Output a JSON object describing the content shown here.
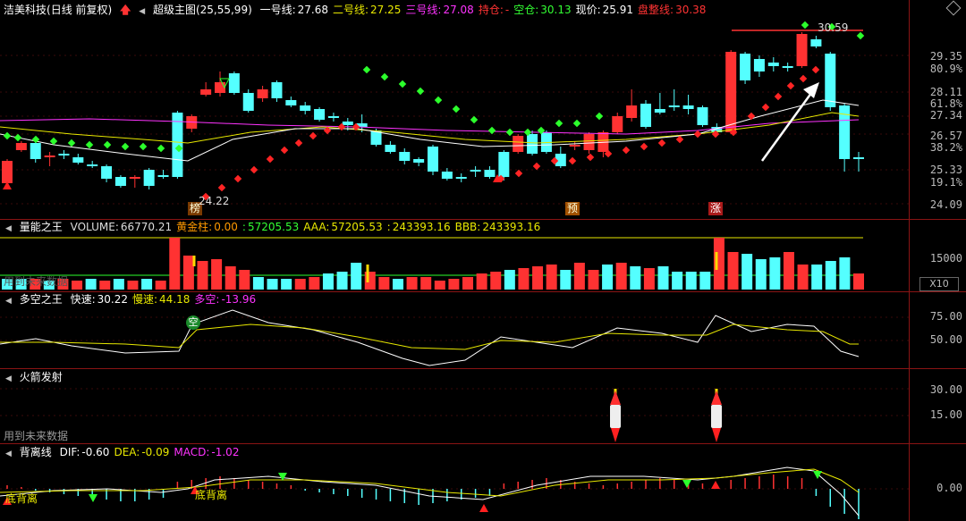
{
  "main": {
    "stock_name": "洁美科技",
    "period_label": "(日线 前复权)",
    "indicator_name": "超级主图(25,55,99)",
    "lines": [
      {
        "label": "一号线:",
        "value": "27.68",
        "color": "#ffffff"
      },
      {
        "label": "二号线:",
        "value": "27.25",
        "color": "#e8e800"
      },
      {
        "label": "三号线:",
        "value": "27.08",
        "color": "#ff33ff"
      },
      {
        "label": "持仓:",
        "value": "-",
        "color": "#ff3333"
      },
      {
        "label": "空仓:",
        "value": "30.13",
        "color": "#33ff33"
      },
      {
        "label": "现价:",
        "value": "25.91",
        "color": "#ffffff"
      },
      {
        "label": "盘整线:",
        "value": "30.38",
        "color": "#ff3333"
      }
    ],
    "y_labels": [
      "29.35",
      "80.9%",
      "28.11",
      "61.8%",
      "27.34",
      "26.57",
      "38.2%",
      "25.33",
      "19.1%",
      "24.09"
    ],
    "annotations": {
      "high_price": "30.59",
      "low_price": "24.22"
    },
    "tags": [
      "榜",
      "预",
      "涨"
    ]
  },
  "volume": {
    "name": "量能之王",
    "items": [
      {
        "label": "VOLUME:",
        "value": "66770.21",
        "color": "#dddddd"
      },
      {
        "label": "黄金柱:",
        "value": "0.00",
        "color": "#ff9900"
      },
      {
        "label": ":",
        "value": "57205.53",
        "color": "#33ff33"
      },
      {
        "label": "AAA:",
        "value": "57205.53",
        "color": "#e8e800"
      },
      {
        "label": ":",
        "value": "243393.16",
        "color": "#e8e800"
      },
      {
        "label": "BBB:",
        "value": "243393.16",
        "color": "#e8e800"
      }
    ],
    "y_label": "15000",
    "scale_button": "X10",
    "ghost_text": "用到未来数据"
  },
  "duokong": {
    "name": "多空之王",
    "items": [
      {
        "label": "快速:",
        "value": "30.22",
        "color": "#ffffff"
      },
      {
        "label": "慢速:",
        "value": "44.18",
        "color": "#e8e800"
      },
      {
        "label": "多空:",
        "value": "-13.96",
        "color": "#ff33ff"
      }
    ],
    "y_labels": [
      "75.00",
      "50.00"
    ],
    "badge": "空"
  },
  "rocket": {
    "name": "火箭发射",
    "y_labels": [
      "30.00",
      "15.00"
    ],
    "ghost_text": "用到未来数据"
  },
  "macd": {
    "name": "背离线",
    "items": [
      {
        "label": "DIF:",
        "value": "-0.60",
        "color": "#ffffff"
      },
      {
        "label": "DEA:",
        "value": "-0.09",
        "color": "#e8e800"
      },
      {
        "label": "MACD:",
        "value": "-1.02",
        "color": "#ff33ff"
      }
    ],
    "y_label": "0.00",
    "labels": [
      "底背离",
      "底背离"
    ]
  },
  "colors": {
    "up": "#ff3232",
    "down": "#54ffff",
    "grid": "#8a1414"
  }
}
